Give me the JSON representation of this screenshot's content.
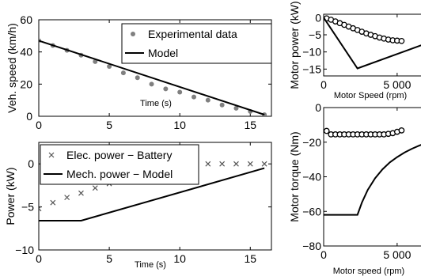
{
  "chart_data": [
    {
      "id": "speed",
      "type": "scatter",
      "xlabel": "Time (s)",
      "ylabel": "Veh. speed (km/h)",
      "xlim": [
        0,
        16.5
      ],
      "ylim": [
        0,
        60
      ],
      "xticks": [
        0,
        5,
        10,
        15
      ],
      "yticks": [
        0,
        20,
        40,
        60
      ],
      "grid": false,
      "legend": "top-right",
      "series": [
        {
          "name": "Experimental data",
          "kind": "markers",
          "marker": "circle",
          "color": "#808080",
          "x": [
            0,
            1,
            2,
            3,
            4,
            5,
            6,
            7,
            8,
            9,
            10,
            11,
            12,
            13,
            14,
            15,
            16
          ],
          "y": [
            47,
            44,
            41,
            38,
            34,
            31,
            27,
            24,
            20,
            17,
            15,
            12,
            10,
            7,
            5,
            3,
            1
          ]
        },
        {
          "name": "Model",
          "kind": "line",
          "color": "#000000",
          "x": [
            0,
            16
          ],
          "y": [
            47,
            1
          ]
        }
      ]
    },
    {
      "id": "power",
      "type": "scatter",
      "xlabel": "Time (s)",
      "ylabel": "Power (kW)",
      "xlim": [
        0,
        16.5
      ],
      "ylim": [
        -10,
        2.5
      ],
      "xticks": [
        0,
        5,
        10,
        15
      ],
      "yticks": [
        -10,
        -5,
        0
      ],
      "grid": false,
      "legend": "top-left",
      "series": [
        {
          "name": "Elec. power − Battery",
          "kind": "markers",
          "marker": "x",
          "color": "#555555",
          "x": [
            0,
            1,
            2,
            3,
            4,
            5,
            6,
            7,
            8,
            9,
            10,
            11,
            12,
            13,
            14,
            15,
            16
          ],
          "y": [
            -5.2,
            -4.5,
            -3.9,
            -3.4,
            -2.8,
            -2.3,
            -1.7,
            -1.3,
            -0.8,
            -0.4,
            -0.1,
            0,
            0,
            0,
            0,
            0,
            0
          ]
        },
        {
          "name": "Mech. power − Model",
          "kind": "line",
          "color": "#000000",
          "x": [
            0,
            3,
            16
          ],
          "y": [
            -6.6,
            -6.6,
            -0.5
          ]
        }
      ]
    },
    {
      "id": "motor-power",
      "type": "scatter",
      "xlabel": "Motor Speed (rpm)",
      "ylabel": "Motor power (kW)",
      "xlim": [
        0,
        7000
      ],
      "ylim": [
        -17,
        1
      ],
      "xticks": [
        0,
        5000
      ],
      "xtick_labels": [
        "0",
        "5 000"
      ],
      "yticks": [
        -15,
        -10,
        -5,
        0
      ],
      "grid": false,
      "series": [
        {
          "name": "",
          "kind": "markers",
          "marker": "open-circle",
          "color": "#000000",
          "x": [
            200,
            500,
            800,
            1100,
            1400,
            1700,
            2000,
            2300,
            2600,
            2900,
            3200,
            3500,
            3800,
            4100,
            4400,
            4700,
            5000,
            5300
          ],
          "y": [
            -0.2,
            -0.6,
            -1.1,
            -1.6,
            -2.1,
            -2.6,
            -3.1,
            -3.6,
            -4.1,
            -4.6,
            -5.0,
            -5.4,
            -5.8,
            -6.1,
            -6.4,
            -6.6,
            -6.7,
            -6.8
          ]
        },
        {
          "name": "",
          "kind": "line",
          "color": "#000000",
          "x": [
            0,
            2300,
            7000
          ],
          "y": [
            0,
            -14.8,
            -7.5
          ]
        }
      ]
    },
    {
      "id": "motor-torque",
      "type": "scatter",
      "xlabel": "Motor speed (rpm)",
      "ylabel": "Motor torque (Nm)",
      "xlim": [
        0,
        7000
      ],
      "ylim": [
        -80,
        0
      ],
      "xticks": [
        0,
        5000
      ],
      "xtick_labels": [
        "0",
        "5 000"
      ],
      "yticks": [
        -80,
        -60,
        -40,
        -20,
        0
      ],
      "grid": false,
      "series": [
        {
          "name": "",
          "kind": "markers",
          "marker": "open-circle",
          "color": "#000000",
          "x": [
            200,
            500,
            800,
            1100,
            1400,
            1700,
            2000,
            2300,
            2600,
            2900,
            3200,
            3500,
            3800,
            4100,
            4400,
            4700,
            5000,
            5300
          ],
          "y": [
            -13.5,
            -15.5,
            -15.5,
            -15.5,
            -15.5,
            -15.5,
            -15.5,
            -15.5,
            -15.5,
            -15.5,
            -15.5,
            -15.5,
            -15.5,
            -15.5,
            -15.2,
            -14.8,
            -14.0,
            -13.2
          ]
        },
        {
          "name": "",
          "kind": "line",
          "color": "#000000",
          "x": [
            0,
            2300,
            2600,
            3000,
            3500,
            4000,
            4500,
            5000,
            5500,
            6000,
            6500,
            7000
          ],
          "y": [
            -62,
            -62,
            -54.9,
            -47.6,
            -40.8,
            -35.7,
            -31.7,
            -28.6,
            -26.0,
            -23.8,
            -22.0,
            -20.4
          ]
        }
      ]
    }
  ]
}
